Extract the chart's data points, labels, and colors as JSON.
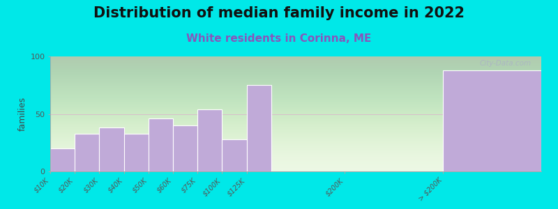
{
  "title": "Distribution of median family income in 2022",
  "subtitle": "White residents in Corinna, ME",
  "categories": [
    "$10K",
    "$20K",
    "$30K",
    "$40K",
    "$50K",
    "$60K",
    "$75K",
    "$100K",
    "$125K",
    "$200K",
    "> $200K"
  ],
  "values": [
    20,
    33,
    38,
    33,
    46,
    40,
    54,
    28,
    75,
    0,
    88
  ],
  "bar_color": "#c0aad8",
  "bar_edge_color": "#ffffff",
  "bg_outer": "#00e8e8",
  "bg_plot_light": "#eaf7e0",
  "bg_plot_dark": "#f5fbf0",
  "ylabel": "families",
  "ylim": [
    0,
    100
  ],
  "yticks": [
    0,
    50,
    100
  ],
  "title_fontsize": 15,
  "subtitle_fontsize": 11,
  "subtitle_color": "#8855bb",
  "watermark": "City-Data.com",
  "tick_label_fontsize": 7,
  "tick_label_color": "#555555",
  "hline_y": 50,
  "hline_color": "#ddaacc",
  "hline_alpha": 0.7
}
